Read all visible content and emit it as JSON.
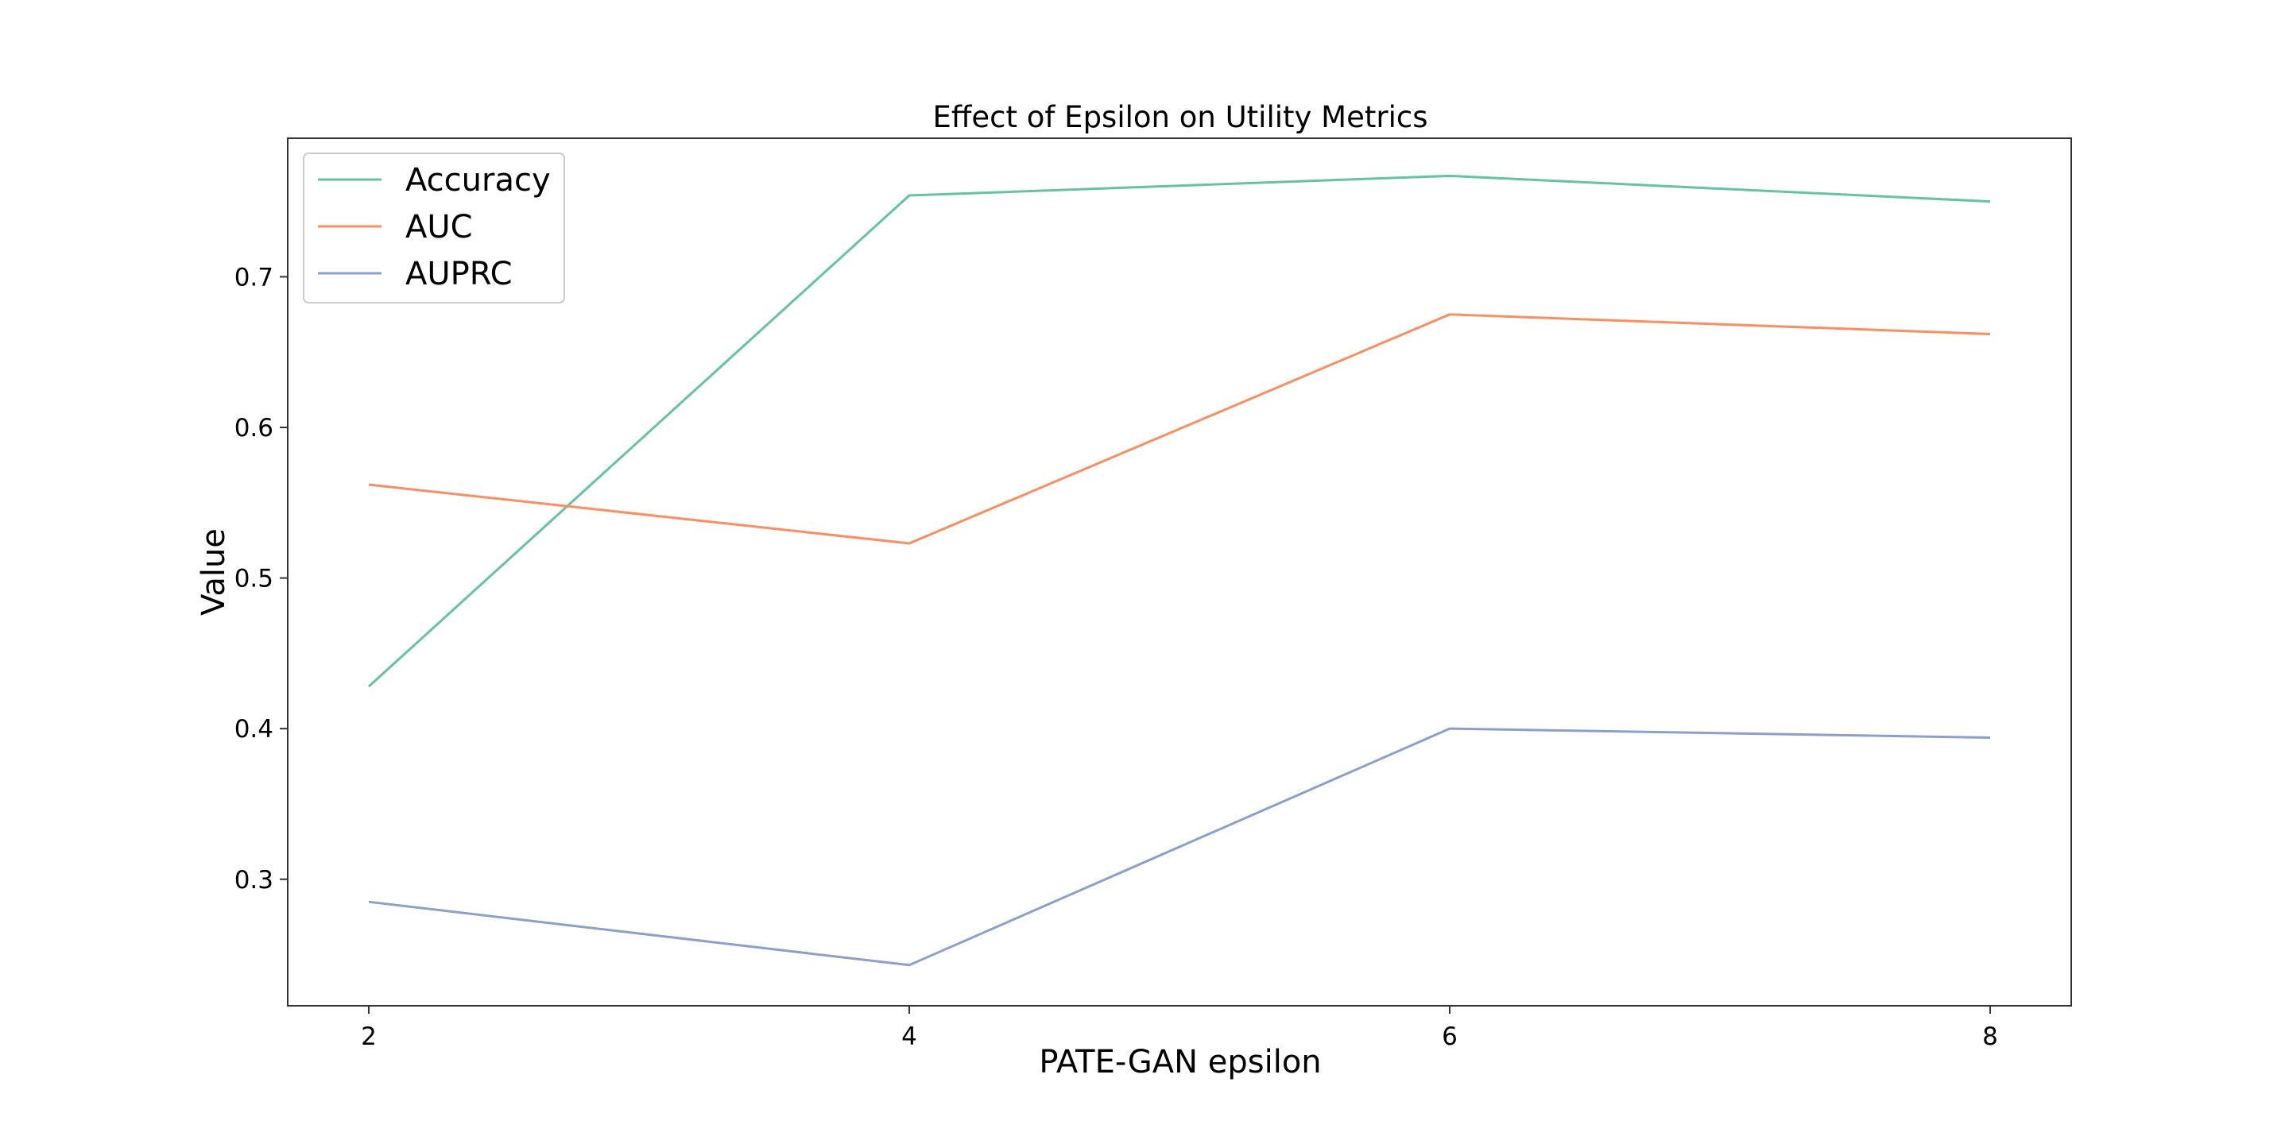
{
  "chart_data": {
    "type": "line",
    "title": "Effect of Epsilon on Utility Metrics",
    "xlabel": "PATE-GAN epsilon",
    "ylabel": "Value",
    "x": [
      2,
      4,
      6,
      8
    ],
    "x_ticks": [
      "2",
      "4",
      "6",
      "8"
    ],
    "y_ticks": [
      "0.3",
      "0.4",
      "0.5",
      "0.6",
      "0.7"
    ],
    "xlim": [
      1.7,
      8.3
    ],
    "ylim": [
      0.216,
      0.792
    ],
    "grid": false,
    "legend_position": "top-left",
    "series": [
      {
        "name": "Accuracy",
        "color": "#66c2a5",
        "values": [
          0.428,
          0.754,
          0.767,
          0.75
        ]
      },
      {
        "name": "AUC",
        "color": "#fc8d62",
        "values": [
          0.562,
          0.523,
          0.675,
          0.662
        ]
      },
      {
        "name": "AUPRC",
        "color": "#8da0cb",
        "values": [
          0.285,
          0.243,
          0.4,
          0.394
        ]
      }
    ]
  }
}
